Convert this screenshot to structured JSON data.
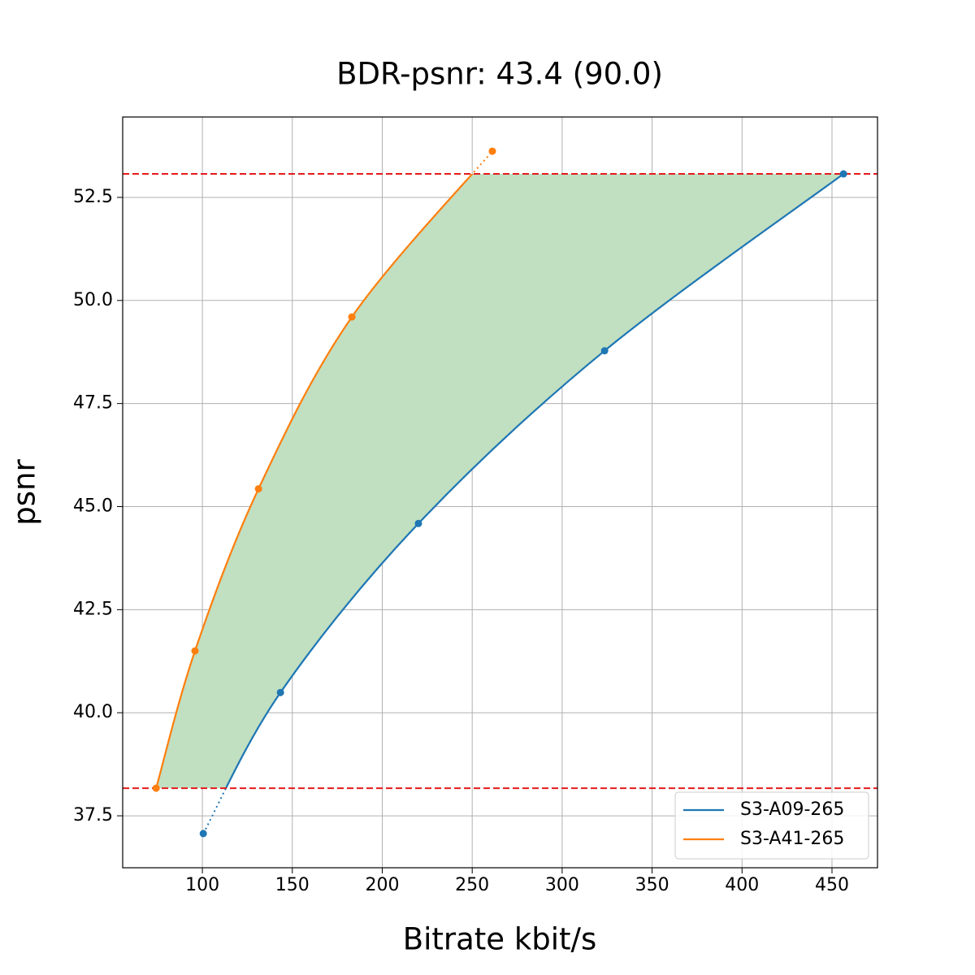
{
  "chart_data": {
    "type": "line",
    "title": "BDR-psnr: 43.4 (90.0)",
    "x_label": "Bitrate kbit/s",
    "y_label": "psnr",
    "xlim": [
      55.7,
      475.3
    ],
    "ylim": [
      36.24,
      54.45
    ],
    "xticks": [
      100,
      150,
      200,
      250,
      300,
      350,
      400,
      450
    ],
    "yticks": [
      37.5,
      {
        "value": 40,
        "label": "40.0"
      },
      42.5,
      {
        "value": 45,
        "label": "45.0"
      },
      47.5,
      {
        "value": 50,
        "label": "50.0"
      },
      52.5
    ],
    "grid": true,
    "legend": "lower right",
    "fill_color": "#c1dfc1",
    "bound_color": "#e41a1c",
    "series": [
      {
        "name": "S3-A09-265",
        "color": "#1f77b4",
        "x": [
          100.5,
          143.4,
          220.1,
          323.6,
          456.4
        ],
        "values": [
          37.07,
          40.49,
          44.59,
          48.78,
          53.07
        ]
      },
      {
        "name": "S3-A41-265",
        "color": "#ff7f0e",
        "x": [
          74.3,
          95.9,
          131.2,
          183.1,
          261.2
        ],
        "values": [
          38.17,
          41.5,
          45.43,
          49.6,
          53.62
        ]
      }
    ]
  }
}
